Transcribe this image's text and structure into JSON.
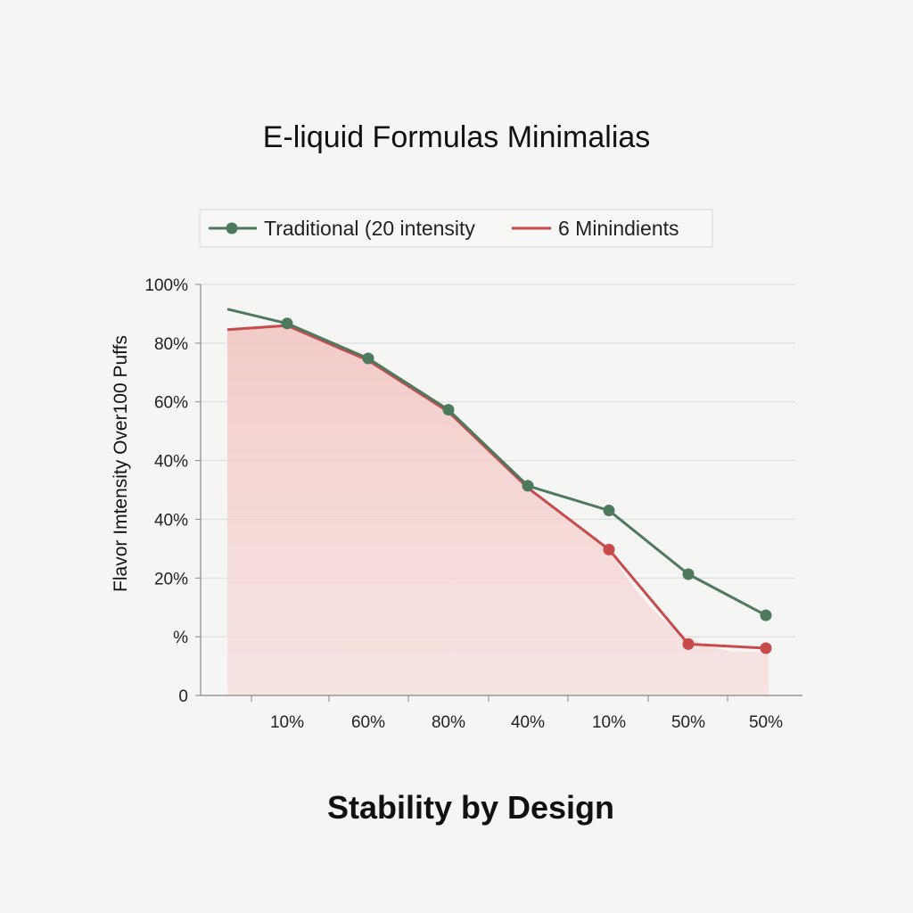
{
  "chart_data": {
    "type": "line",
    "title": "E-liquid Formulas Minimalias",
    "subtitle": "Stability by Design",
    "ylabel": "Flavor Imtensity Over100 Puffs",
    "xlabel": "",
    "x_tick_labels": [
      "10%",
      "60%",
      "80%",
      "40%",
      "10%",
      "50%",
      "50%"
    ],
    "y_tick_labels": [
      "100%",
      "80%",
      "60%",
      "40%",
      "40%",
      "20%",
      "%",
      "0"
    ],
    "ylim": [
      0,
      100
    ],
    "grid": true,
    "legend": "top",
    "series": [
      {
        "name": "Traditional (20 intensity",
        "color": "#4d7a5c",
        "start": 94,
        "values": [
          90.5,
          82,
          69.5,
          51,
          45,
          29.5,
          19.5
        ]
      },
      {
        "name": "6 Minindients",
        "color": "#c94a4a",
        "start": 89,
        "values": [
          90,
          81.5,
          69,
          50.5,
          35.5,
          12.5,
          11.5
        ]
      }
    ],
    "area_color": "#f2c9c6"
  }
}
